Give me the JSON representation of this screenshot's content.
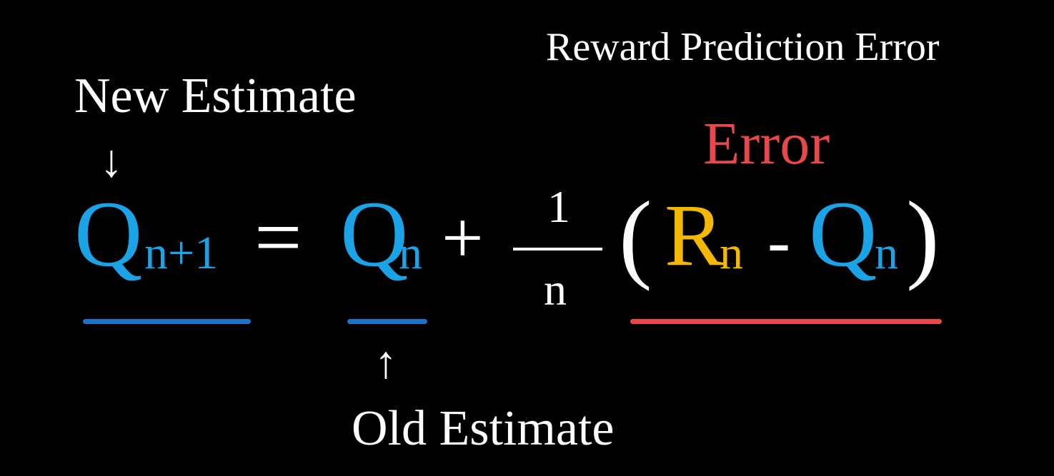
{
  "colors": {
    "background": "#000000",
    "text": "#ffffff",
    "q_blue": "#1aa3e6",
    "underline_blue": "#1c72c9",
    "reward_yellow": "#f5b800",
    "error_red": "#e8474b"
  },
  "labels": {
    "reward_prediction_error": "Reward Prediction Error",
    "new_estimate": "New Estimate",
    "old_estimate": "Old Estimate",
    "error": "Error",
    "arrow_down": "↓",
    "arrow_up": "↑"
  },
  "equation": {
    "lhs_symbol": "Q",
    "lhs_subscript": "n+1",
    "equals": "=",
    "old_symbol": "Q",
    "old_subscript": "n",
    "plus": "+",
    "fraction_numerator": "1",
    "fraction_denominator": "n",
    "open_paren": "(",
    "reward_symbol": "R",
    "reward_subscript": "n",
    "minus": "-",
    "error_q_symbol": "Q",
    "error_q_subscript": "n",
    "close_paren": ")"
  }
}
